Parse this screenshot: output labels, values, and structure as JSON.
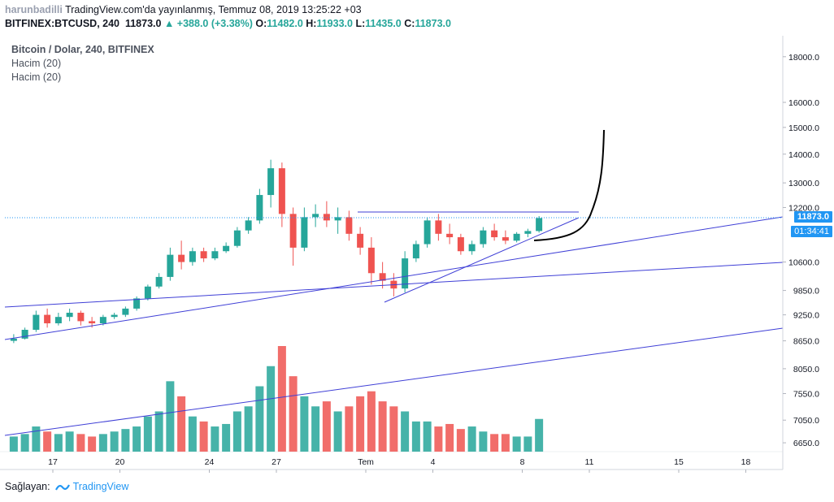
{
  "header": {
    "username": "harunbadilli",
    "published": "TradingView.com'da yayınlanmış, Temmuz 08, 2019 13:25:22 +03"
  },
  "symbol_line": {
    "symbol": "BITFINEX:BTCUSD, 240",
    "last": "11873.0",
    "change": "▲ +388.0 (+3.38%)",
    "o_label": "O:",
    "o_value": "11482.0",
    "h_label": "H:",
    "h_value": "11933.0",
    "l_label": "L:",
    "l_value": "11435.0",
    "c_label": "C:",
    "c_value": "11873.0"
  },
  "legend": {
    "title": "Bitcoin / Dolar, 240, BITFINEX",
    "volume1": "Hacim (20)",
    "volume2": "Hacim (20)"
  },
  "footer": {
    "label": "Sağlayan:",
    "brand": "TradingView"
  },
  "badges": {
    "price": "11873.0",
    "countdown": "01:34:41"
  },
  "colors": {
    "up": "#26a69a",
    "down": "#ef5350",
    "trendline": "#3f3fd6",
    "badge": "#2196f3",
    "drawing": "#000000"
  },
  "chart_data": {
    "type": "candlestick",
    "y_scale": "log",
    "ylim": [
      6500,
      19000
    ],
    "y_ticks": [
      "18000.0",
      "16000.0",
      "15000.0",
      "14000.0",
      "13000.0",
      "12200.0",
      "10600.0",
      "9850.0",
      "9250.0",
      "8650.0",
      "8050.0",
      "7550.0",
      "7050.0",
      "6650.0"
    ],
    "x_ticks": [
      "17",
      "20",
      "24",
      "27",
      "Tem",
      "4",
      "8",
      "11",
      "15",
      "18"
    ],
    "candles": [
      {
        "t": "2019-06-15 00:00",
        "o": 8650,
        "h": 8800,
        "l": 8600,
        "c": 8700
      },
      {
        "t": "2019-06-15 12:00",
        "o": 8700,
        "h": 8950,
        "l": 8680,
        "c": 8900
      },
      {
        "t": "2019-06-16 00:00",
        "o": 8900,
        "h": 9350,
        "l": 8850,
        "c": 9250
      },
      {
        "t": "2019-06-16 12:00",
        "o": 9250,
        "h": 9400,
        "l": 8950,
        "c": 9050
      },
      {
        "t": "2019-06-17 00:00",
        "o": 9050,
        "h": 9300,
        "l": 9000,
        "c": 9200
      },
      {
        "t": "2019-06-17 12:00",
        "o": 9200,
        "h": 9400,
        "l": 9100,
        "c": 9300
      },
      {
        "t": "2019-06-18 00:00",
        "o": 9300,
        "h": 9350,
        "l": 9000,
        "c": 9100
      },
      {
        "t": "2019-06-18 12:00",
        "o": 9100,
        "h": 9200,
        "l": 8950,
        "c": 9050
      },
      {
        "t": "2019-06-19 00:00",
        "o": 9050,
        "h": 9250,
        "l": 9000,
        "c": 9200
      },
      {
        "t": "2019-06-19 12:00",
        "o": 9200,
        "h": 9300,
        "l": 9150,
        "c": 9250
      },
      {
        "t": "2019-06-20 00:00",
        "o": 9250,
        "h": 9450,
        "l": 9200,
        "c": 9400
      },
      {
        "t": "2019-06-20 12:00",
        "o": 9400,
        "h": 9700,
        "l": 9350,
        "c": 9650
      },
      {
        "t": "2019-06-21 00:00",
        "o": 9650,
        "h": 10000,
        "l": 9600,
        "c": 9950
      },
      {
        "t": "2019-06-21 12:00",
        "o": 9950,
        "h": 10300,
        "l": 9900,
        "c": 10200
      },
      {
        "t": "2019-06-22 00:00",
        "o": 10200,
        "h": 11000,
        "l": 10100,
        "c": 10800
      },
      {
        "t": "2019-06-22 12:00",
        "o": 10800,
        "h": 11200,
        "l": 10400,
        "c": 10600
      },
      {
        "t": "2019-06-23 00:00",
        "o": 10600,
        "h": 11000,
        "l": 10500,
        "c": 10900
      },
      {
        "t": "2019-06-23 12:00",
        "o": 10900,
        "h": 11000,
        "l": 10600,
        "c": 10700
      },
      {
        "t": "2019-06-24 00:00",
        "o": 10700,
        "h": 11000,
        "l": 10650,
        "c": 10900
      },
      {
        "t": "2019-06-24 12:00",
        "o": 10900,
        "h": 11150,
        "l": 10850,
        "c": 11050
      },
      {
        "t": "2019-06-25 00:00",
        "o": 11050,
        "h": 11600,
        "l": 11000,
        "c": 11500
      },
      {
        "t": "2019-06-25 12:00",
        "o": 11500,
        "h": 11900,
        "l": 11400,
        "c": 11800
      },
      {
        "t": "2019-06-26 00:00",
        "o": 11800,
        "h": 12800,
        "l": 11700,
        "c": 12600
      },
      {
        "t": "2019-06-26 12:00",
        "o": 12600,
        "h": 13800,
        "l": 12200,
        "c": 13500
      },
      {
        "t": "2019-06-27 00:00",
        "o": 13500,
        "h": 13700,
        "l": 11600,
        "c": 12000
      },
      {
        "t": "2019-06-27 12:00",
        "o": 12000,
        "h": 12200,
        "l": 10500,
        "c": 11000
      },
      {
        "t": "2019-06-28 00:00",
        "o": 11000,
        "h": 12200,
        "l": 10900,
        "c": 11900
      },
      {
        "t": "2019-06-28 12:00",
        "o": 11900,
        "h": 12300,
        "l": 11600,
        "c": 12000
      },
      {
        "t": "2019-06-29 00:00",
        "o": 12000,
        "h": 12400,
        "l": 11600,
        "c": 11800
      },
      {
        "t": "2019-06-29 12:00",
        "o": 11800,
        "h": 12200,
        "l": 11400,
        "c": 11900
      },
      {
        "t": "2019-06-30 00:00",
        "o": 11900,
        "h": 12100,
        "l": 11200,
        "c": 11400
      },
      {
        "t": "2019-06-30 12:00",
        "o": 11400,
        "h": 11600,
        "l": 10800,
        "c": 11000
      },
      {
        "t": "2019-07-01 00:00",
        "o": 11000,
        "h": 11300,
        "l": 10000,
        "c": 10300
      },
      {
        "t": "2019-07-01 12:00",
        "o": 10300,
        "h": 10600,
        "l": 9900,
        "c": 10100
      },
      {
        "t": "2019-07-02 00:00",
        "o": 10100,
        "h": 10300,
        "l": 9700,
        "c": 9900
      },
      {
        "t": "2019-07-02 12:00",
        "o": 9900,
        "h": 10900,
        "l": 9800,
        "c": 10700
      },
      {
        "t": "2019-07-03 00:00",
        "o": 10700,
        "h": 11200,
        "l": 10600,
        "c": 11100
      },
      {
        "t": "2019-07-03 12:00",
        "o": 11100,
        "h": 11900,
        "l": 11000,
        "c": 11800
      },
      {
        "t": "2019-07-04 00:00",
        "o": 11800,
        "h": 12000,
        "l": 11200,
        "c": 11400
      },
      {
        "t": "2019-07-04 12:00",
        "o": 11400,
        "h": 11700,
        "l": 11100,
        "c": 11300
      },
      {
        "t": "2019-07-05 00:00",
        "o": 11300,
        "h": 11400,
        "l": 10800,
        "c": 10900
      },
      {
        "t": "2019-07-05 12:00",
        "o": 10900,
        "h": 11200,
        "l": 10800,
        "c": 11100
      },
      {
        "t": "2019-07-06 00:00",
        "o": 11100,
        "h": 11600,
        "l": 11000,
        "c": 11500
      },
      {
        "t": "2019-07-06 12:00",
        "o": 11500,
        "h": 11700,
        "l": 11200,
        "c": 11300
      },
      {
        "t": "2019-07-07 00:00",
        "o": 11300,
        "h": 11500,
        "l": 11100,
        "c": 11200
      },
      {
        "t": "2019-07-07 12:00",
        "o": 11200,
        "h": 11450,
        "l": 11150,
        "c": 11400
      },
      {
        "t": "2019-07-08 00:00",
        "o": 11400,
        "h": 11550,
        "l": 11300,
        "c": 11482
      },
      {
        "t": "2019-07-08 12:00",
        "o": 11482,
        "h": 11933,
        "l": 11435,
        "c": 11873
      }
    ],
    "volume": {
      "name": "Hacim (20)",
      "values": [
        6,
        7,
        10,
        8,
        7,
        8,
        7,
        6,
        7,
        8,
        9,
        10,
        14,
        16,
        28,
        22,
        14,
        12,
        10,
        11,
        16,
        18,
        26,
        34,
        42,
        30,
        22,
        18,
        20,
        16,
        18,
        22,
        24,
        20,
        18,
        16,
        12,
        12,
        10,
        11,
        9,
        10,
        8,
        7,
        7,
        6,
        6,
        13
      ]
    }
  }
}
